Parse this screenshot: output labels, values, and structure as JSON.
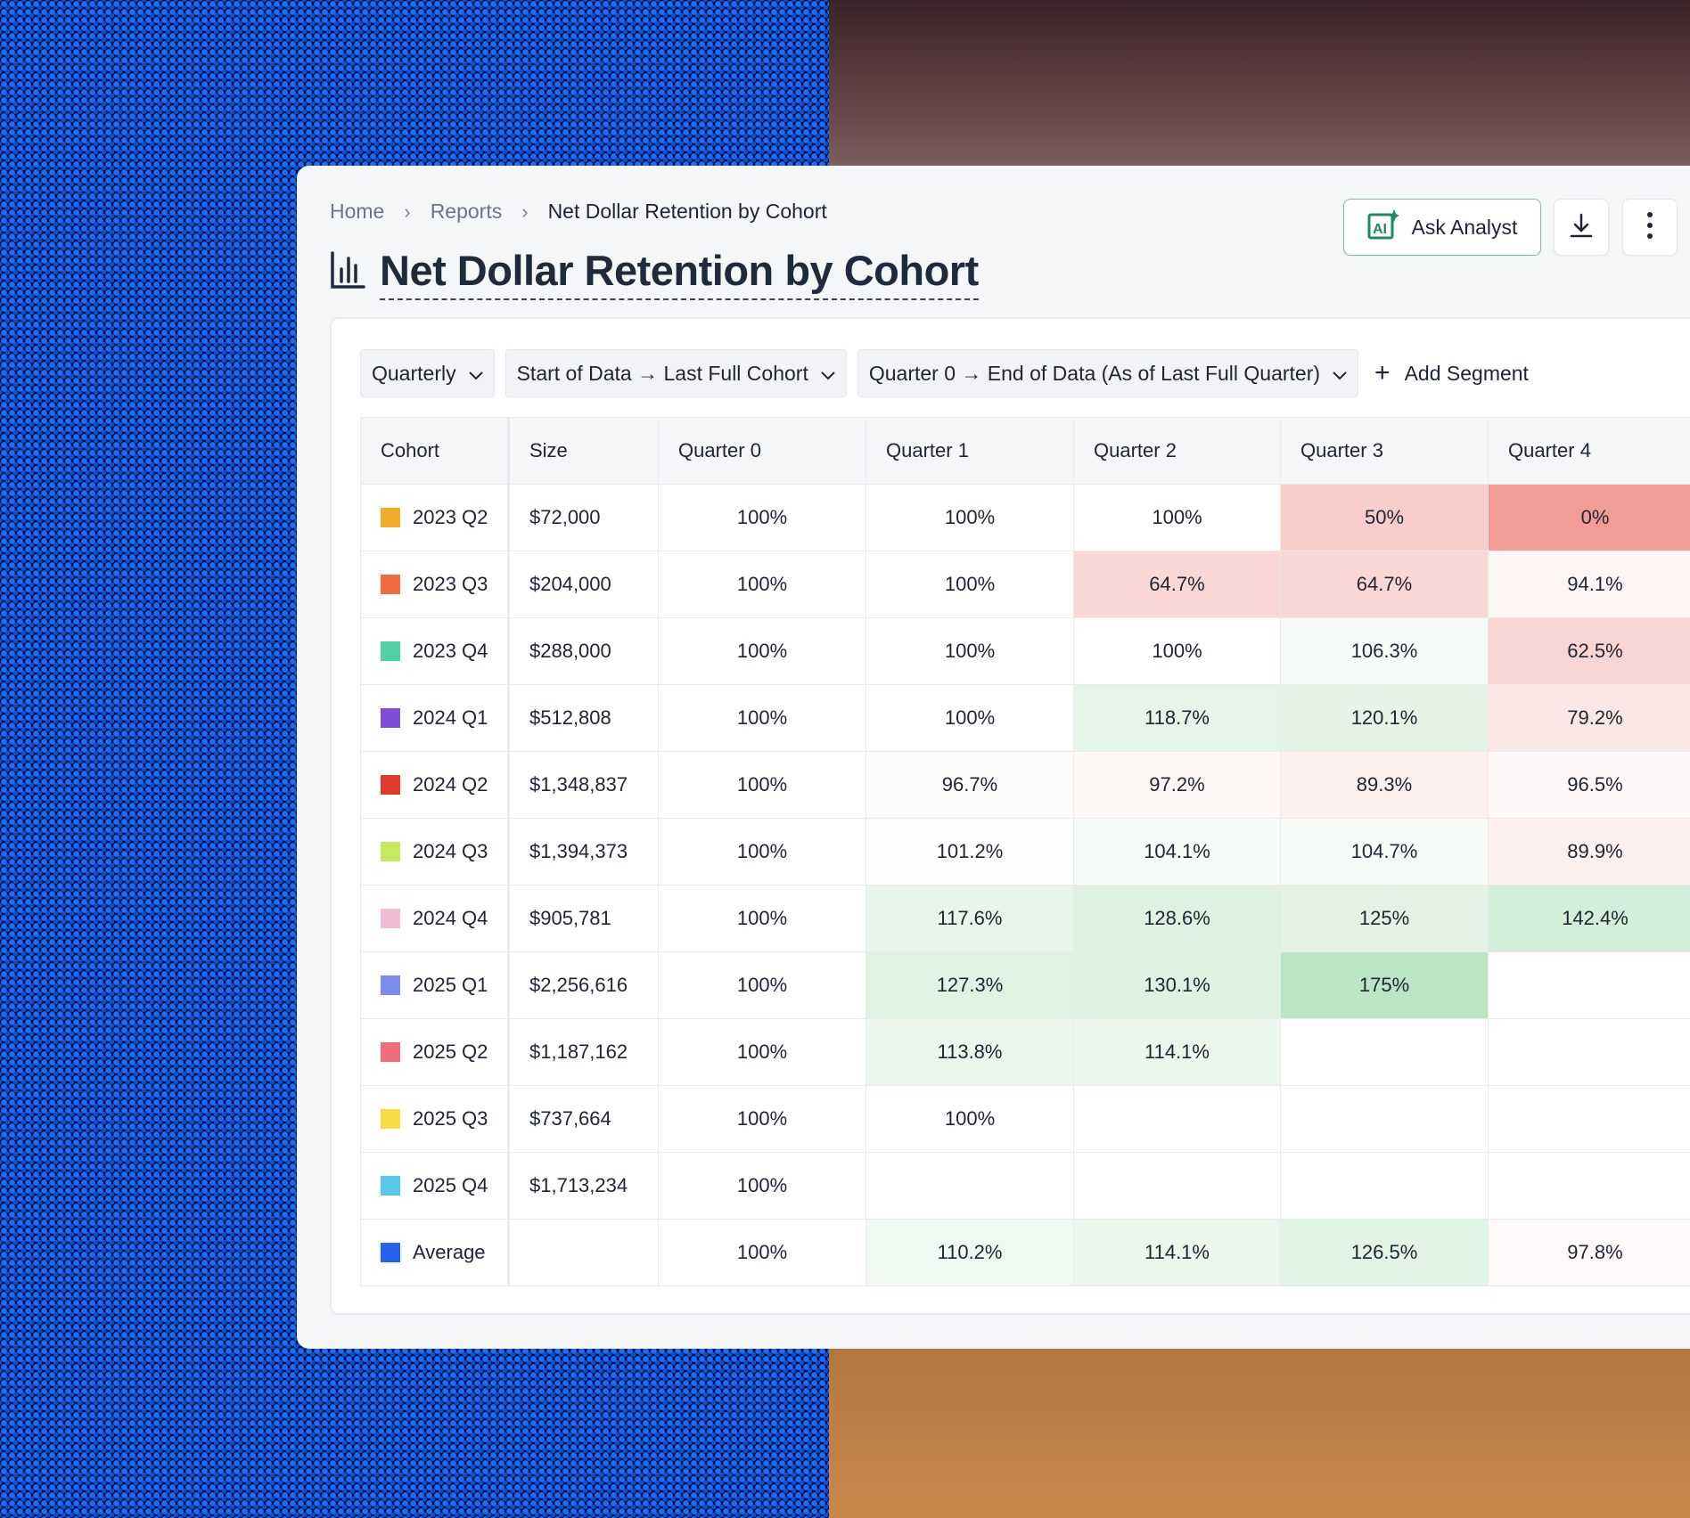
{
  "breadcrumb": {
    "items": [
      "Home",
      "Reports"
    ],
    "current": "Net Dollar Retention by Cohort"
  },
  "title": "Net Dollar Retention by Cohort",
  "actions": {
    "ask_label": "Ask Analyst",
    "ask_icon": "AI"
  },
  "filters": {
    "granularity": "Quarterly",
    "cohort_range": "Start of Data → Last Full Cohort",
    "period_range": "Quarter 0 → End of Data (As of Last Full Quarter)",
    "add_segment": "Add Segment"
  },
  "table": {
    "headers": [
      "Cohort",
      "Size",
      "Quarter 0",
      "Quarter 1",
      "Quarter 2",
      "Quarter 3",
      "Quarter 4"
    ],
    "rows": [
      {
        "cohort": "2023 Q2",
        "color": "#f4ab2c",
        "size": "$72,000",
        "values": [
          "100%",
          "100%",
          "100%",
          "50%",
          "0%"
        ],
        "bg": [
          "",
          "",
          "",
          "#f8cdca",
          "#f19c96"
        ]
      },
      {
        "cohort": "2023 Q3",
        "color": "#f26a3d",
        "size": "$204,000",
        "values": [
          "100%",
          "100%",
          "64.7%",
          "64.7%",
          "94.1%"
        ],
        "bg": [
          "",
          "",
          "#f9d7d4",
          "#f9d7d4",
          "#fdf5f4"
        ]
      },
      {
        "cohort": "2023 Q4",
        "color": "#4fd1a5",
        "size": "$288,000",
        "values": [
          "100%",
          "100%",
          "100%",
          "106.3%",
          "62.5%"
        ],
        "bg": [
          "",
          "",
          "",
          "#f5fbf6",
          "#f8d5d2"
        ]
      },
      {
        "cohort": "2024 Q1",
        "color": "#7c4ddb",
        "size": "$512,808",
        "values": [
          "100%",
          "100%",
          "118.7%",
          "120.1%",
          "79.2%"
        ],
        "bg": [
          "",
          "",
          "#e6f5e9",
          "#e4f4e7",
          "#fbe7e5"
        ]
      },
      {
        "cohort": "2024 Q2",
        "color": "#e03a2c",
        "size": "$1,348,837",
        "values": [
          "100%",
          "96.7%",
          "97.2%",
          "89.3%",
          "96.5%"
        ],
        "bg": [
          "",
          "#fefbfb",
          "#fdf7f6",
          "#fcefee",
          "#fef9f8"
        ]
      },
      {
        "cohort": "2024 Q3",
        "color": "#c5ea5c",
        "size": "$1,394,373",
        "values": [
          "100%",
          "101.2%",
          "104.1%",
          "104.7%",
          "89.9%"
        ],
        "bg": [
          "",
          "#fdfefd",
          "#f8fcf8",
          "#f6fbf7",
          "#fcefee"
        ]
      },
      {
        "cohort": "2024 Q4",
        "color": "#f0bcd4",
        "size": "$905,781",
        "values": [
          "100%",
          "117.6%",
          "128.6%",
          "125%",
          "142.4%"
        ],
        "bg": [
          "",
          "#e7f6ea",
          "#def2e2",
          "#e2f3e5",
          "#d3eed9"
        ]
      },
      {
        "cohort": "2025 Q1",
        "color": "#7b8cf0",
        "size": "$2,256,616",
        "values": [
          "100%",
          "127.3%",
          "130.1%",
          "175%",
          ""
        ],
        "bg": [
          "",
          "#dff3e3",
          "#ddf2e1",
          "#b9e6c3",
          ""
        ]
      },
      {
        "cohort": "2025 Q2",
        "color": "#ee6f7a",
        "size": "$1,187,162",
        "values": [
          "100%",
          "113.8%",
          "114.1%",
          "",
          ""
        ],
        "bg": [
          "",
          "#ebf7ed",
          "#ebf7ed",
          "",
          ""
        ]
      },
      {
        "cohort": "2025 Q3",
        "color": "#f8dc44",
        "size": "$737,664",
        "values": [
          "100%",
          "100%",
          "",
          "",
          ""
        ],
        "bg": [
          "",
          "",
          "",
          "",
          ""
        ]
      },
      {
        "cohort": "2025 Q4",
        "color": "#56c9e8",
        "size": "$1,713,234",
        "values": [
          "100%",
          "",
          "",
          "",
          ""
        ],
        "bg": [
          "",
          "",
          "",
          "",
          ""
        ]
      },
      {
        "cohort": "Average",
        "color": "#2563f0",
        "size": "",
        "values": [
          "100%",
          "110.2%",
          "114.1%",
          "126.5%",
          "97.8%"
        ],
        "bg": [
          "",
          "#eff9f1",
          "#ebf7ed",
          "#e2f4e5",
          "#fefafa"
        ]
      }
    ]
  }
}
